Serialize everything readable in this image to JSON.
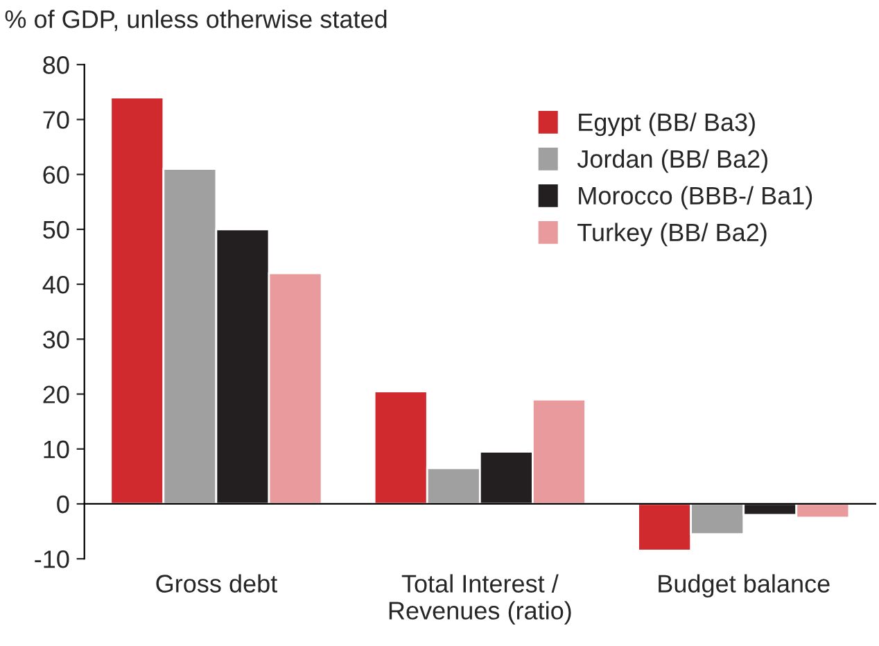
{
  "chart_data": {
    "type": "bar",
    "ylabel": "% of GDP, unless otherwise stated",
    "categories": [
      "Gross debt",
      "Total Interest /\nRevenues (ratio)",
      "Budget balance"
    ],
    "series": [
      {
        "name": "Egypt (BB/ Ba3)",
        "color": "#d02a2e",
        "values": [
          74,
          20.5,
          -8.5
        ]
      },
      {
        "name": "Jordan (BB/ Ba2)",
        "color": "#a0a0a0",
        "values": [
          61,
          6.5,
          -5.5
        ]
      },
      {
        "name": "Morocco (BBB-/ Ba1)",
        "color": "#231f20",
        "values": [
          50,
          9.5,
          -2
        ]
      },
      {
        "name": "Turkey (BB/ Ba2)",
        "color": "#e89a9c",
        "values": [
          42,
          19,
          -2.5
        ]
      }
    ],
    "ylim": [
      -10,
      80
    ],
    "yticks": [
      -10,
      0,
      10,
      20,
      30,
      40,
      50,
      60,
      70,
      80
    ],
    "legend": "top right"
  }
}
